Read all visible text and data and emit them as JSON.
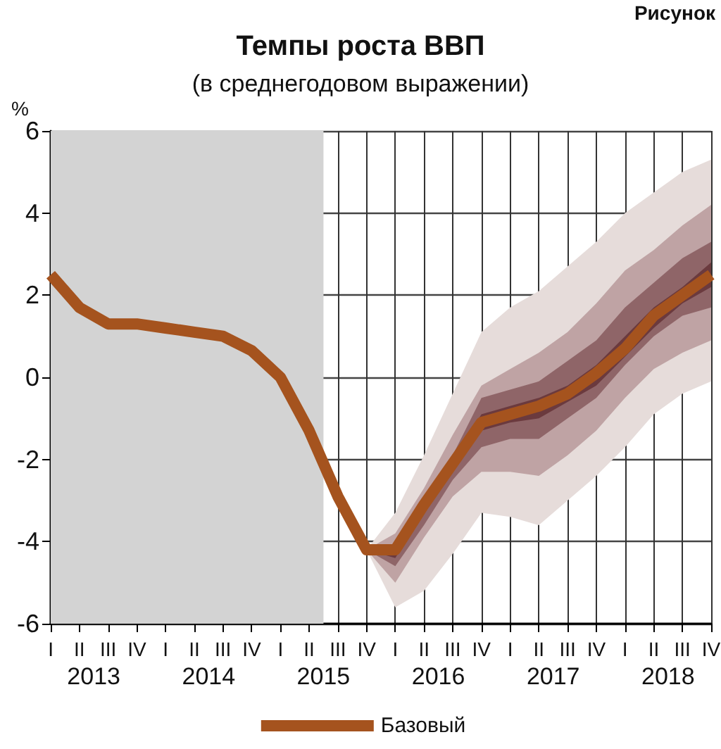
{
  "chart_data": {
    "type": "line",
    "title": "Темпы роста ВВП",
    "subtitle": "(в среднегодовом выражении)",
    "ylabel": "%",
    "annotations": [
      "Рисунок",
      "I",
      "II",
      "III",
      "IV",
      "I",
      "II",
      "III",
      "IV",
      "I",
      "II",
      "III",
      "IV",
      "I",
      "II",
      "III",
      "IV",
      "I",
      "II",
      "III",
      "IV",
      "I",
      "II",
      "III",
      "IV"
    ],
    "x": [
      2013.125,
      2013.375,
      2013.625,
      2013.875,
      2014.125,
      2014.375,
      2014.625,
      2014.875,
      2015.125,
      2015.375,
      2015.625,
      2015.875,
      2016.125,
      2016.375,
      2016.625,
      2016.875,
      2017.125,
      2017.375,
      2017.625,
      2017.875,
      2018.125,
      2018.375,
      2018.625,
      2018.875
    ],
    "xlim": [
      2013.125,
      2018.875
    ],
    "xticks": [
      {
        "value": 2013.125,
        "label": null
      },
      {
        "value": 2013.375,
        "label": null
      },
      {
        "value": 2013.625,
        "label": null
      },
      {
        "value": 2013.875,
        "label": null
      },
      {
        "value": 2014.125,
        "label": null
      },
      {
        "value": 2014.375,
        "label": null
      },
      {
        "value": 2014.625,
        "label": null
      },
      {
        "value": 2014.875,
        "label": null
      },
      {
        "value": 2015.125,
        "label": null
      },
      {
        "value": 2015.375,
        "label": null
      },
      {
        "value": 2015.625,
        "label": null
      },
      {
        "value": 2015.875,
        "label": null
      },
      {
        "value": 2016.125,
        "label": null
      },
      {
        "value": 2016.375,
        "label": null
      },
      {
        "value": 2016.625,
        "label": null
      },
      {
        "value": 2016.875,
        "label": null
      },
      {
        "value": 2017.125,
        "label": null
      },
      {
        "value": 2017.375,
        "label": null
      },
      {
        "value": 2017.625,
        "label": null
      },
      {
        "value": 2017.875,
        "label": null
      },
      {
        "value": 2018.125,
        "label": null
      },
      {
        "value": 2018.375,
        "label": null
      },
      {
        "value": 2018.625,
        "label": null
      },
      {
        "value": 2018.875,
        "label": null
      },
      {
        "value": 2013.5,
        "label": "2013"
      },
      {
        "value": 2014.5,
        "label": "2014"
      },
      {
        "value": 2015.5,
        "label": "2015"
      },
      {
        "value": 2016.5,
        "label": "2016"
      },
      {
        "value": 2017.5,
        "label": "2017"
      },
      {
        "value": 2018.5,
        "label": "2018"
      }
    ],
    "ylim": [
      -6,
      6
    ],
    "yticks": [
      -6,
      -4,
      -2,
      0,
      2,
      4,
      6
    ],
    "grid": true,
    "legend": "bottom",
    "marker": "none",
    "line_style": "solid",
    "bands": [
      {
        "axis": "x",
        "from": 2013.125,
        "to": 2015.5,
        "color": "#d3d3d3"
      }
    ],
    "series": [
      {
        "type": "area",
        "color": "#e6dcda",
        "values": [
          null,
          null,
          null,
          null,
          null,
          null,
          null,
          null,
          null,
          null,
          null,
          null,
          null,
          null,
          null,
          null,
          null,
          null,
          null,
          null,
          null,
          null,
          null,
          null
        ],
        "lower": [
          null,
          null,
          null,
          null,
          null,
          null,
          null,
          null,
          null,
          null,
          null,
          -4.2,
          -5.6,
          -5.2,
          -4.3,
          -3.3,
          -3.4,
          -3.6,
          -3.0,
          -2.4,
          -1.7,
          -0.9,
          -0.4,
          -0.1
        ],
        "upper": [
          null,
          null,
          null,
          null,
          null,
          null,
          null,
          null,
          null,
          null,
          null,
          -4.2,
          -3.3,
          -1.9,
          -0.4,
          1.1,
          1.7,
          2.1,
          2.7,
          3.3,
          4.0,
          4.5,
          5.0,
          5.3
        ]
      },
      {
        "type": "area",
        "color": "#bfa3a4",
        "values": [
          null,
          null,
          null,
          null,
          null,
          null,
          null,
          null,
          null,
          null,
          null,
          null,
          null,
          null,
          null,
          null,
          null,
          null,
          null,
          null,
          null,
          null,
          null,
          null
        ],
        "lower": [
          null,
          null,
          null,
          null,
          null,
          null,
          null,
          null,
          null,
          null,
          null,
          -4.2,
          -5.0,
          -3.9,
          -2.9,
          -2.3,
          -2.3,
          -2.4,
          -1.9,
          -1.3,
          -0.5,
          0.2,
          0.6,
          0.9
        ],
        "upper": [
          null,
          null,
          null,
          null,
          null,
          null,
          null,
          null,
          null,
          null,
          null,
          -4.2,
          -3.8,
          -2.7,
          -1.4,
          -0.2,
          0.2,
          0.6,
          1.1,
          1.8,
          2.6,
          3.1,
          3.7,
          4.2
        ]
      },
      {
        "type": "area",
        "color": "#8f6568",
        "values": [
          null,
          null,
          null,
          null,
          null,
          null,
          null,
          null,
          null,
          null,
          null,
          null,
          null,
          null,
          null,
          null,
          null,
          null,
          null,
          null,
          null,
          null,
          null,
          null
        ],
        "lower": [
          null,
          null,
          null,
          null,
          null,
          null,
          null,
          null,
          null,
          null,
          null,
          -4.2,
          -4.6,
          -3.6,
          -2.5,
          -1.7,
          -1.5,
          -1.5,
          -1.0,
          -0.5,
          0.3,
          1.0,
          1.5,
          1.7
        ],
        "upper": [
          null,
          null,
          null,
          null,
          null,
          null,
          null,
          null,
          null,
          null,
          null,
          -4.2,
          -4.1,
          -3.0,
          -1.9,
          -0.5,
          -0.3,
          -0.1,
          0.4,
          0.9,
          1.7,
          2.3,
          2.9,
          3.3
        ]
      },
      {
        "type": "area",
        "color": "#6b3a3e",
        "values": [
          null,
          null,
          null,
          null,
          null,
          null,
          null,
          null,
          null,
          null,
          null,
          null,
          null,
          null,
          null,
          null,
          null,
          null,
          null,
          null,
          null,
          null,
          null,
          null
        ],
        "lower": [
          null,
          null,
          null,
          null,
          null,
          null,
          null,
          null,
          null,
          null,
          null,
          -4.2,
          -4.4,
          -3.3,
          -2.3,
          -1.3,
          -1.1,
          -1.0,
          -0.6,
          -0.2,
          0.5,
          1.2,
          1.8,
          2.2
        ],
        "upper": [
          null,
          null,
          null,
          null,
          null,
          null,
          null,
          null,
          null,
          null,
          null,
          -4.2,
          -4.1,
          -3.0,
          -2.0,
          -0.9,
          -0.7,
          -0.5,
          -0.2,
          0.3,
          1.0,
          1.7,
          2.2,
          2.8
        ]
      },
      {
        "name": "Базовый",
        "color": "#a5531e",
        "values": [
          2.5,
          1.7,
          1.3,
          1.3,
          1.2,
          1.1,
          1.0,
          0.65,
          0.0,
          -1.3,
          -2.9,
          -4.2,
          -4.2,
          -3.1,
          -2.1,
          -1.1,
          -0.9,
          -0.7,
          -0.4,
          0.1,
          0.7,
          1.5,
          2.0,
          2.5
        ]
      }
    ]
  }
}
